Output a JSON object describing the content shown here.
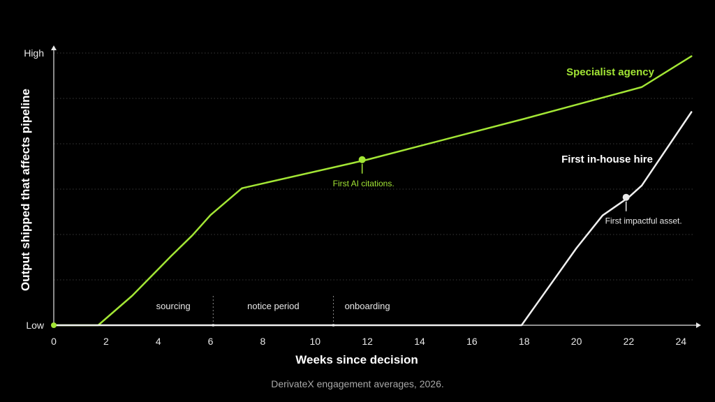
{
  "chart_data": {
    "type": "line",
    "xlabel": "Weeks since decision",
    "ylabel": "Output shipped that affects pipeline",
    "caption": "DerivateX engagement averages, 2026.",
    "xlim": [
      0,
      24.5
    ],
    "ylim": [
      0,
      6
    ],
    "x_ticks": [
      0,
      2,
      4,
      6,
      8,
      10,
      12,
      14,
      16,
      18,
      20,
      22,
      24
    ],
    "y_tick_labels": [
      {
        "value": 0,
        "label": "Low"
      },
      {
        "value": 6,
        "label": "High"
      }
    ],
    "grid": "horizontal dotted",
    "series": [
      {
        "name": "Specialist agency",
        "color": "#a3e635",
        "x": [
          0,
          1.7,
          3,
          4.5,
          5.3,
          6,
          7.2,
          12,
          18,
          22.5,
          24.4
        ],
        "y": [
          0,
          0,
          0.65,
          1.53,
          1.98,
          2.43,
          3.02,
          3.65,
          4.55,
          5.25,
          5.93
        ],
        "annotation": {
          "x": 11.8,
          "y": 3.65,
          "text": "First AI citations."
        }
      },
      {
        "name": "First in-house hire",
        "color": "#f0f0f0",
        "x": [
          0,
          17.9,
          20,
          21,
          22,
          22.5,
          24.4
        ],
        "y": [
          0,
          0,
          1.7,
          2.42,
          2.82,
          3.08,
          4.7
        ],
        "annotation": {
          "x": 21.9,
          "y": 2.82,
          "text": "First impactful asset."
        }
      }
    ],
    "phases": [
      {
        "label": "sourcing",
        "start": 0,
        "end": 6.1
      },
      {
        "label": "notice period",
        "start": 6.1,
        "end": 10.7
      },
      {
        "label": "onboarding",
        "start": 10.7,
        "end": 18
      }
    ]
  }
}
